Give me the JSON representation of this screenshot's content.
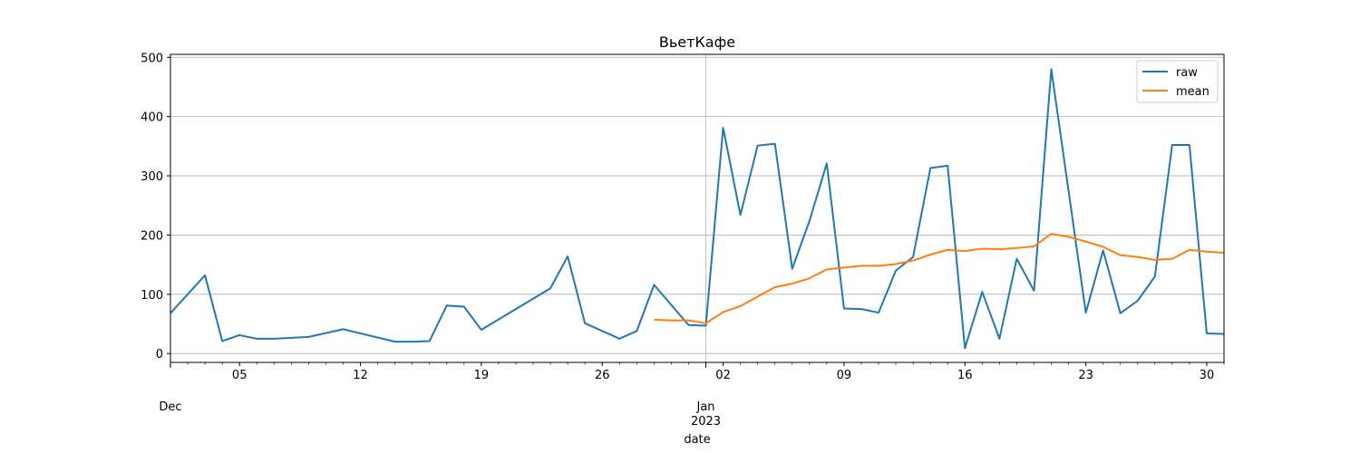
{
  "chart_data": {
    "type": "line",
    "title": "ВьетКафе",
    "xlabel": "date",
    "ylabel": "",
    "x_range": [
      "2022-12-01",
      "2023-01-31"
    ],
    "ylim": [
      -15,
      505
    ],
    "yticks": [
      0,
      100,
      200,
      300,
      400,
      500
    ],
    "x_major_ticks": [
      {
        "date": "2022-12-05",
        "label": "05"
      },
      {
        "date": "2022-12-12",
        "label": "12"
      },
      {
        "date": "2022-12-19",
        "label": "19"
      },
      {
        "date": "2022-12-26",
        "label": "26"
      },
      {
        "date": "2023-01-02",
        "label": "02"
      },
      {
        "date": "2023-01-09",
        "label": "09"
      },
      {
        "date": "2023-01-16",
        "label": "16"
      },
      {
        "date": "2023-01-23",
        "label": "23"
      },
      {
        "date": "2023-01-30",
        "label": "30"
      }
    ],
    "x_month_labels": [
      {
        "date": "2022-12-01",
        "label": "Dec",
        "sublabel": ""
      },
      {
        "date": "2023-01-01",
        "label": "Jan",
        "sublabel": "2023"
      }
    ],
    "grid": true,
    "legend_position": "top-right",
    "series": [
      {
        "name": "raw",
        "color": "#1f77b4",
        "points": [
          [
            "2022-12-01",
            68
          ],
          [
            "2022-12-03",
            132
          ],
          [
            "2022-12-04",
            21
          ],
          [
            "2022-12-05",
            31
          ],
          [
            "2022-12-06",
            25
          ],
          [
            "2022-12-07",
            25
          ],
          [
            "2022-12-09",
            28
          ],
          [
            "2022-12-11",
            41
          ],
          [
            "2022-12-14",
            20
          ],
          [
            "2022-12-15",
            20
          ],
          [
            "2022-12-16",
            21
          ],
          [
            "2022-12-17",
            81
          ],
          [
            "2022-12-18",
            79
          ],
          [
            "2022-12-19",
            40
          ],
          [
            "2022-12-23",
            110
          ],
          [
            "2022-12-24",
            164
          ],
          [
            "2022-12-25",
            51
          ],
          [
            "2022-12-27",
            25
          ],
          [
            "2022-12-28",
            38
          ],
          [
            "2022-12-29",
            116
          ],
          [
            "2022-12-31",
            48
          ],
          [
            "2023-01-01",
            47
          ],
          [
            "2023-01-02",
            381
          ],
          [
            "2023-01-03",
            234
          ],
          [
            "2023-01-04",
            351
          ],
          [
            "2023-01-05",
            354
          ],
          [
            "2023-01-06",
            143
          ],
          [
            "2023-01-07",
            224
          ],
          [
            "2023-01-08",
            321
          ],
          [
            "2023-01-09",
            76
          ],
          [
            "2023-01-10",
            75
          ],
          [
            "2023-01-11",
            69
          ],
          [
            "2023-01-12",
            140
          ],
          [
            "2023-01-13",
            163
          ],
          [
            "2023-01-14",
            313
          ],
          [
            "2023-01-15",
            317
          ],
          [
            "2023-01-16",
            9
          ],
          [
            "2023-01-17",
            104
          ],
          [
            "2023-01-18",
            25
          ],
          [
            "2023-01-19",
            160
          ],
          [
            "2023-01-20",
            106
          ],
          [
            "2023-01-21",
            480
          ],
          [
            "2023-01-23",
            69
          ],
          [
            "2023-01-24",
            174
          ],
          [
            "2023-01-25",
            68
          ],
          [
            "2023-01-26",
            89
          ],
          [
            "2023-01-27",
            130
          ],
          [
            "2023-01-28",
            352
          ],
          [
            "2023-01-29",
            352
          ],
          [
            "2023-01-30",
            34
          ],
          [
            "2023-01-31",
            33
          ]
        ]
      },
      {
        "name": "mean",
        "color": "#ff7f0e",
        "points": [
          [
            "2022-12-29",
            57
          ],
          [
            "2022-12-30",
            56
          ],
          [
            "2022-12-31",
            56
          ],
          [
            "2023-01-01",
            51
          ],
          [
            "2023-01-02",
            70
          ],
          [
            "2023-01-03",
            80
          ],
          [
            "2023-01-04",
            96
          ],
          [
            "2023-01-05",
            112
          ],
          [
            "2023-01-06",
            118
          ],
          [
            "2023-01-07",
            127
          ],
          [
            "2023-01-08",
            142
          ],
          [
            "2023-01-09",
            145
          ],
          [
            "2023-01-10",
            148
          ],
          [
            "2023-01-11",
            148
          ],
          [
            "2023-01-12",
            151
          ],
          [
            "2023-01-13",
            157
          ],
          [
            "2023-01-14",
            167
          ],
          [
            "2023-01-15",
            175
          ],
          [
            "2023-01-16",
            173
          ],
          [
            "2023-01-17",
            177
          ],
          [
            "2023-01-18",
            176
          ],
          [
            "2023-01-19",
            178
          ],
          [
            "2023-01-20",
            181
          ],
          [
            "2023-01-21",
            202
          ],
          [
            "2023-01-22",
            197
          ],
          [
            "2023-01-23",
            189
          ],
          [
            "2023-01-24",
            180
          ],
          [
            "2023-01-25",
            166
          ],
          [
            "2023-01-26",
            163
          ],
          [
            "2023-01-27",
            158
          ],
          [
            "2023-01-28",
            160
          ],
          [
            "2023-01-29",
            175
          ],
          [
            "2023-01-30",
            172
          ],
          [
            "2023-01-31",
            170
          ]
        ]
      }
    ]
  }
}
